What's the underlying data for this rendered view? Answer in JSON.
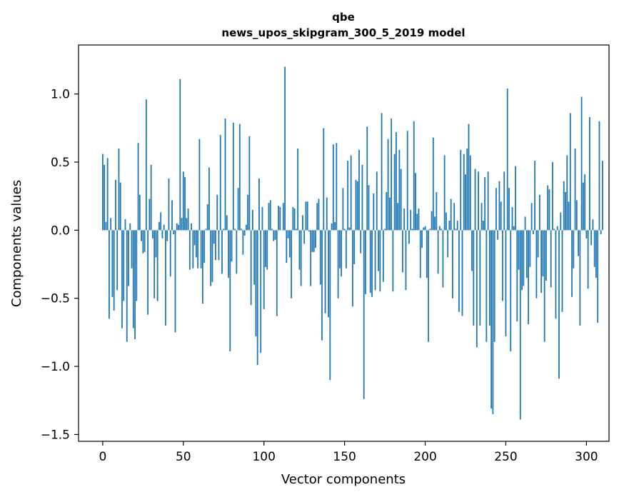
{
  "chart_data": {
    "type": "bar",
    "title_line1": "qbe",
    "title_line2": "news_upos_skipgram_300_5_2019 model",
    "xlabel": "Vector components",
    "ylabel": "Components values",
    "xlim": [
      -15,
      314
    ],
    "ylim": [
      -1.55,
      1.36
    ],
    "xticks": [
      0,
      50,
      100,
      150,
      200,
      250,
      300
    ],
    "xtick_labels": [
      "0",
      "50",
      "100",
      "150",
      "200",
      "250",
      "300"
    ],
    "yticks": [
      -1.5,
      -1.0,
      -0.5,
      0.0,
      0.5,
      1.0
    ],
    "ytick_labels": [
      "−1.5",
      "−1.0",
      "−0.5",
      "0.0",
      "0.5",
      "1.0"
    ],
    "bar_color": "#1f77b4",
    "values": [
      0.56,
      0.48,
      0.06,
      0.53,
      -0.65,
      0.09,
      -0.49,
      -0.59,
      0.37,
      -0.44,
      0.6,
      0.35,
      -0.72,
      -0.52,
      0.08,
      -0.82,
      -0.41,
      0.05,
      -0.28,
      -0.72,
      -0.8,
      -0.52,
      0.64,
      0.26,
      -0.08,
      -0.17,
      -0.16,
      0.96,
      -0.62,
      0.23,
      0.48,
      -0.06,
      -0.5,
      -0.2,
      -0.52,
      0.06,
      0.13,
      -0.06,
      0.04,
      -0.7,
      -0.08,
      0.38,
      -0.34,
      0.22,
      -0.03,
      -0.75,
      0.05,
      0.04,
      1.11,
      0.09,
      0.43,
      0.39,
      0.09,
      0.16,
      -0.29,
      0.05,
      -0.28,
      -0.11,
      -0.2,
      -0.28,
      0.67,
      -0.28,
      -0.54,
      -0.24,
      0.01,
      0.19,
      0.46,
      -0.41,
      -0.38,
      -0.1,
      -0.22,
      0.26,
      -0.22,
      0.7,
      -0.32,
      0.01,
      0.82,
      0.11,
      -0.35,
      -0.89,
      -0.23,
      0.79,
      0.01,
      -0.32,
      0.31,
      0.78,
      0.01,
      -0.18,
      -0.04,
      0.04,
      0.26,
      0.69,
      -0.55,
      0.15,
      -0.4,
      -0.78,
      -0.99,
      0.38,
      -0.9,
      0.17,
      -0.58,
      -0.27,
      -0.29,
      0.2,
      0.22,
      0.01,
      -0.08,
      -0.07,
      -0.63,
      0.18,
      0.17,
      0.0,
      0.2,
      1.2,
      -0.24,
      -0.06,
      -0.2,
      -0.5,
      0.17,
      0.16,
      0.01,
      0.6,
      -0.29,
      -0.41,
      0.11,
      -0.1,
      0.21,
      0.21,
      -0.01,
      -0.41,
      -0.16,
      -0.16,
      -0.13,
      0.2,
      0.23,
      -0.4,
      -0.81,
      0.75,
      -0.61,
      0.24,
      -0.64,
      -1.1,
      0.05,
      0.63,
      0.06,
      0.64,
      -0.5,
      -0.28,
      -0.34,
      0.31,
      0.01,
      -0.28,
      0.51,
      0.02,
      0.55,
      -0.56,
      -0.25,
      0.37,
      0.36,
      0.59,
      -0.17,
      0.48,
      -1.24,
      -0.47,
      0.76,
      0.33,
      -0.46,
      -0.49,
      0.27,
      -0.44,
      0.43,
      -0.3,
      -0.45,
      0.86,
      -0.38,
      0.01,
      0.28,
      0.67,
      0.24,
      0.82,
      -0.45,
      0.56,
      0.72,
      0.2,
      0.59,
      0.45,
      -0.31,
      0.16,
      -0.44,
      0.73,
      -0.1,
      0.15,
      0.01,
      0.8,
      0.42,
      0.12,
      0.16,
      -0.35,
      -0.13,
      0.02,
      0.03,
      -0.35,
      -0.82,
      0.01,
      0.14,
      0.68,
      0.1,
      0.28,
      -0.32,
      0.03,
      0.01,
      -0.42,
      0.55,
      0.13,
      -0.2,
      0.07,
      0.23,
      -0.5,
      0.2,
      0.01,
      0.07,
      -0.6,
      0.59,
      -0.63,
      0.56,
      0.41,
      0.6,
      0.78,
      0.55,
      -0.3,
      -0.7,
      0.45,
      -0.86,
      0.43,
      -0.7,
      0.2,
      0.07,
      0.39,
      -0.82,
      0.43,
      -0.7,
      -1.31,
      -1.35,
      -0.82,
      0.31,
      -0.07,
      0.36,
      0.21,
      -0.52,
      0.43,
      -0.78,
      1.04,
      0.31,
      -0.89,
      0.17,
      0.03,
      0.47,
      -0.67,
      -0.29,
      -1.39,
      -0.44,
      -0.41,
      0.1,
      -0.35,
      -0.69,
      -0.27,
      0.2,
      -0.03,
      0.51,
      -0.5,
      -0.2,
      0.26,
      -0.46,
      -0.34,
      -0.82,
      -0.37,
      0.33,
      0.3,
      -0.42,
      0.5,
      0.01,
      -0.65,
      0.03,
      -1.09,
      0.13,
      -0.6,
      0.36,
      0.28,
      0.55,
      0.21,
      0.86,
      -0.49,
      -0.28,
      0.6,
      0.22,
      -0.19,
      -0.7,
      0.98,
      0.35,
      0.41,
      -0.06,
      -0.43,
      0.83,
      -0.11,
      0.08,
      -0.27,
      -0.35,
      -0.68,
      0.8,
      -0.03,
      0.51
    ]
  }
}
